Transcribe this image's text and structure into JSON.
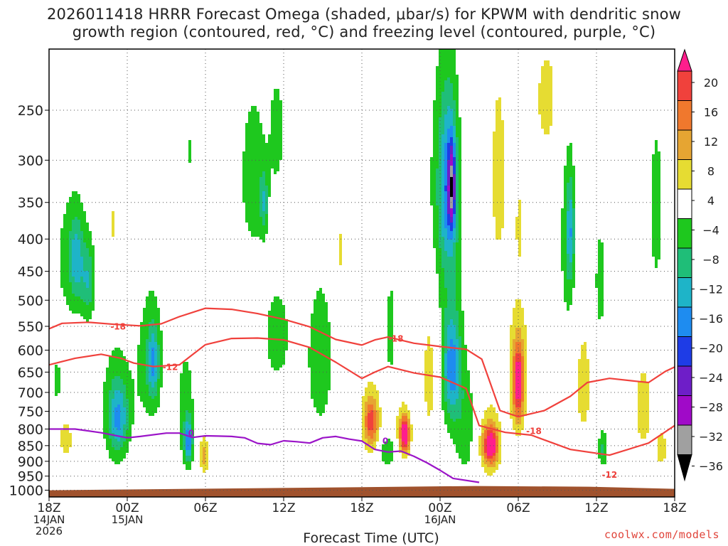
{
  "title_line1": "2026011418 HRRR Forecast Omega (shaded, μbar/s) for KPWM with dendritic snow",
  "title_line2": "growth region (contoured, red, °C) and freezing level (contoured, purple, °C)",
  "xlabel": "Forecast Time (UTC)",
  "credit": "coolwx.com/models",
  "chart_data": {
    "type": "time-height cross section",
    "title": "2026011418 HRRR Forecast Omega (shaded, μbar/s) for KPWM with dendritic snow growth region (contoured, red, °C) and freezing level (contoured, purple, °C)",
    "xlabel": "Forecast Time (UTC)",
    "ylabel": "Pressure (hPa)",
    "x_range_hours": [
      0,
      48
    ],
    "y_range_hpa": [
      200,
      1025
    ],
    "x_ticks": [
      {
        "hour": 0,
        "lines": [
          "18Z",
          "14JAN",
          "2026"
        ]
      },
      {
        "hour": 6,
        "lines": [
          "00Z",
          "15JAN"
        ]
      },
      {
        "hour": 12,
        "lines": [
          "06Z"
        ]
      },
      {
        "hour": 18,
        "lines": [
          "12Z"
        ]
      },
      {
        "hour": 24,
        "lines": [
          "18Z"
        ]
      },
      {
        "hour": 30,
        "lines": [
          "00Z",
          "16JAN"
        ]
      },
      {
        "hour": 36,
        "lines": [
          "06Z"
        ]
      },
      {
        "hour": 42,
        "lines": [
          "12Z"
        ]
      },
      {
        "hour": 48,
        "lines": [
          "18Z"
        ]
      }
    ],
    "y_ticks": [
      250,
      300,
      350,
      400,
      450,
      500,
      550,
      600,
      650,
      700,
      750,
      800,
      850,
      900,
      950,
      1000
    ],
    "colorbar": {
      "ticks": [
        "20",
        "16",
        "12",
        "8",
        "4",
        "−4",
        "−8",
        "−12",
        "−16",
        "−20",
        "−24",
        "−28",
        "−32",
        "−36"
      ],
      "bins": [
        {
          "range": [
            20,
            99
          ],
          "color": "#ff1e8c"
        },
        {
          "range": [
            16,
            20
          ],
          "color": "#f0413c"
        },
        {
          "range": [
            12,
            16
          ],
          "color": "#f0782d"
        },
        {
          "range": [
            8,
            12
          ],
          "color": "#e6a532"
        },
        {
          "range": [
            4,
            8
          ],
          "color": "#e6dc32"
        },
        {
          "range": [
            -4,
            4
          ],
          "color": "#ffffff"
        },
        {
          "range": [
            -8,
            -4
          ],
          "color": "#1ec81e"
        },
        {
          "range": [
            -12,
            -8
          ],
          "color": "#1fbe78"
        },
        {
          "range": [
            -16,
            -12
          ],
          "color": "#1eb4c8"
        },
        {
          "range": [
            -20,
            -16
          ],
          "color": "#1e8cf0"
        },
        {
          "range": [
            -24,
            -20
          ],
          "color": "#1e3ce6"
        },
        {
          "range": [
            -28,
            -24
          ],
          "color": "#6e1ec8"
        },
        {
          "range": [
            -32,
            -28
          ],
          "color": "#a00ac8"
        },
        {
          "range": [
            -36,
            -32
          ],
          "color": "#a0a0a0"
        },
        {
          "range": [
            -99,
            -36
          ],
          "color": "#000000"
        }
      ]
    },
    "omega_features": [
      {
        "h": 1.8,
        "p": 430,
        "dh": 1.6,
        "dp": 120,
        "v": -6
      },
      {
        "h": 2.1,
        "p": 430,
        "dh": 0.5,
        "dp": 60,
        "v": -10
      },
      {
        "h": 3.0,
        "p": 470,
        "dh": 0.5,
        "dp": 60,
        "v": -9
      },
      {
        "h": 0.6,
        "p": 670,
        "dh": 0.4,
        "dp": 60,
        "v": -6
      },
      {
        "h": 1.3,
        "p": 830,
        "dh": 0.6,
        "dp": 70,
        "v": 6
      },
      {
        "h": 5.2,
        "p": 740,
        "dh": 1.3,
        "dp": 180,
        "v": -7
      },
      {
        "h": 5.3,
        "p": 770,
        "dh": 0.7,
        "dp": 90,
        "v": -11
      },
      {
        "h": 7.8,
        "p": 620,
        "dh": 1.1,
        "dp": 170,
        "v": -7
      },
      {
        "h": 8.0,
        "p": 630,
        "dh": 0.4,
        "dp": 80,
        "v": -11
      },
      {
        "h": 5.0,
        "p": 380,
        "dh": 0.3,
        "dp": 60,
        "v": 5
      },
      {
        "h": 10.5,
        "p": 750,
        "dh": 0.7,
        "dp": 170,
        "v": -7
      },
      {
        "h": 10.7,
        "p": 840,
        "dh": 0.3,
        "dp": 60,
        "v": -16
      },
      {
        "h": 11.9,
        "p": 880,
        "dh": 0.35,
        "dp": 60,
        "v": 10
      },
      {
        "h": 10.9,
        "p": 290,
        "dh": 0.25,
        "dp": 50,
        "v": -5
      },
      {
        "h": 15.7,
        "p": 320,
        "dh": 1.1,
        "dp": 100,
        "v": -7
      },
      {
        "h": 16.5,
        "p": 350,
        "dh": 0.3,
        "dp": 40,
        "v": -9
      },
      {
        "h": 17.5,
        "p": 270,
        "dh": 0.6,
        "dp": 60,
        "v": -6
      },
      {
        "h": 17.5,
        "p": 570,
        "dh": 1.2,
        "dp": 120,
        "v": -6
      },
      {
        "h": 20.8,
        "p": 620,
        "dh": 1.3,
        "dp": 220,
        "v": -6
      },
      {
        "h": 22.4,
        "p": 420,
        "dh": 0.4,
        "dp": 90,
        "v": 5
      },
      {
        "h": 24.7,
        "p": 770,
        "dh": 0.8,
        "dp": 120,
        "v": 7
      },
      {
        "h": 24.7,
        "p": 780,
        "dh": 0.5,
        "dp": 60,
        "v": 12
      },
      {
        "h": 26.2,
        "p": 560,
        "dh": 0.3,
        "dp": 110,
        "v": -7
      },
      {
        "h": 26.0,
        "p": 870,
        "dh": 0.7,
        "dp": 50,
        "v": -8
      },
      {
        "h": 27.2,
        "p": 800,
        "dh": 0.6,
        "dp": 80,
        "v": 8
      },
      {
        "h": 27.3,
        "p": 820,
        "dh": 0.35,
        "dp": 50,
        "v": 20
      },
      {
        "h": 29.2,
        "p": 660,
        "dh": 0.6,
        "dp": 170,
        "v": 6
      },
      {
        "h": 30.4,
        "p": 330,
        "dh": 1.2,
        "dp": 150,
        "v": -9
      },
      {
        "h": 30.7,
        "p": 330,
        "dh": 0.6,
        "dp": 90,
        "v": -12
      },
      {
        "h": 30.9,
        "p": 330,
        "dh": 0.25,
        "dp": 50,
        "v": -18
      },
      {
        "h": 30.9,
        "p": 620,
        "dh": 1.0,
        "dp": 190,
        "v": -7
      },
      {
        "h": 30.9,
        "p": 640,
        "dh": 0.6,
        "dp": 110,
        "v": -12
      },
      {
        "h": 32.0,
        "p": 800,
        "dh": 0.9,
        "dp": 170,
        "v": -6
      },
      {
        "h": 33.8,
        "p": 840,
        "dh": 0.9,
        "dp": 110,
        "v": 10
      },
      {
        "h": 33.9,
        "p": 850,
        "dh": 0.5,
        "dp": 50,
        "v": 18
      },
      {
        "h": 36.0,
        "p": 640,
        "dh": 0.8,
        "dp": 160,
        "v": 8
      },
      {
        "h": 36.0,
        "p": 680,
        "dh": 0.4,
        "dp": 90,
        "v": 18
      },
      {
        "h": 34.5,
        "p": 320,
        "dh": 0.7,
        "dp": 130,
        "v": 6
      },
      {
        "h": 36.1,
        "p": 380,
        "dh": 0.3,
        "dp": 50,
        "v": 6
      },
      {
        "h": 38.2,
        "p": 240,
        "dh": 1.3,
        "dp": 70,
        "v": 5
      },
      {
        "h": 39.8,
        "p": 400,
        "dh": 0.7,
        "dp": 180,
        "v": -6
      },
      {
        "h": 40.0,
        "p": 390,
        "dh": 0.3,
        "dp": 70,
        "v": -11
      },
      {
        "h": 41.0,
        "p": 680,
        "dh": 0.7,
        "dp": 160,
        "v": 6
      },
      {
        "h": 42.3,
        "p": 470,
        "dh": 0.5,
        "dp": 110,
        "v": -6
      },
      {
        "h": 42.5,
        "p": 860,
        "dh": 0.4,
        "dp": 60,
        "v": -9
      },
      {
        "h": 45.6,
        "p": 740,
        "dh": 0.7,
        "dp": 120,
        "v": 7
      },
      {
        "h": 46.6,
        "p": 360,
        "dh": 0.6,
        "dp": 130,
        "v": -6
      },
      {
        "h": 47.0,
        "p": 860,
        "dh": 0.5,
        "dp": 70,
        "v": 6
      }
    ],
    "contours": [
      {
        "label": "-18",
        "color": "#f0413c",
        "kind": "dendritic",
        "points": [
          [
            0,
            555
          ],
          [
            1,
            544
          ],
          [
            3,
            542
          ],
          [
            5,
            546
          ],
          [
            7,
            549
          ],
          [
            8.6,
            545
          ],
          [
            10,
            531
          ],
          [
            12,
            515
          ],
          [
            14,
            517
          ],
          [
            16,
            525
          ],
          [
            18,
            536
          ],
          [
            20,
            551
          ],
          [
            22,
            577
          ],
          [
            24,
            589
          ],
          [
            25,
            578
          ],
          [
            26,
            572
          ],
          [
            28,
            585
          ],
          [
            30,
            592
          ],
          [
            32,
            598
          ],
          [
            33.2,
            620
          ],
          [
            34.6,
            748
          ],
          [
            36,
            765
          ],
          [
            38,
            748
          ],
          [
            40,
            710
          ],
          [
            41.3,
            675
          ],
          [
            43,
            665
          ],
          [
            45,
            672
          ],
          [
            46,
            675
          ],
          [
            47.3,
            648
          ],
          [
            48,
            638
          ]
        ],
        "label_positions": [
          [
            5.3,
            549
          ],
          [
            26.6,
            574
          ],
          [
            37.2,
            804
          ]
        ]
      },
      {
        "label": "-12",
        "color": "#f0413c",
        "kind": "dendritic",
        "points": [
          [
            0,
            633
          ],
          [
            2,
            618
          ],
          [
            4,
            609
          ],
          [
            5.5,
            618
          ],
          [
            6.5,
            629
          ],
          [
            8,
            637
          ],
          [
            10,
            633
          ],
          [
            11,
            610
          ],
          [
            12,
            588
          ],
          [
            14,
            575
          ],
          [
            16,
            574
          ],
          [
            18,
            578
          ],
          [
            20,
            594
          ],
          [
            22,
            627
          ],
          [
            24,
            665
          ],
          [
            25,
            650
          ],
          [
            26,
            637
          ],
          [
            28,
            652
          ],
          [
            30,
            662
          ],
          [
            32,
            690
          ],
          [
            33,
            790
          ],
          [
            35,
            810
          ],
          [
            37,
            818
          ],
          [
            40,
            862
          ],
          [
            43,
            880
          ],
          [
            46,
            842
          ],
          [
            48,
            790
          ]
        ],
        "label_positions": [
          [
            9.3,
            637
          ],
          [
            43,
            943
          ]
        ]
      },
      {
        "label": "0",
        "color": "#9b14c8",
        "kind": "freezing",
        "points": [
          [
            0,
            800
          ],
          [
            2,
            800
          ],
          [
            4,
            811
          ],
          [
            6,
            826
          ],
          [
            7,
            822
          ],
          [
            9,
            812
          ],
          [
            10,
            812
          ],
          [
            11,
            825
          ],
          [
            12,
            820
          ],
          [
            13,
            821
          ],
          [
            14,
            822
          ],
          [
            15,
            826
          ],
          [
            16,
            843
          ],
          [
            17,
            847
          ],
          [
            18,
            835
          ],
          [
            19,
            838
          ],
          [
            20,
            842
          ],
          [
            21,
            826
          ],
          [
            22,
            822
          ],
          [
            23,
            830
          ],
          [
            24,
            836
          ],
          [
            25,
            862
          ],
          [
            26,
            870
          ],
          [
            27,
            867
          ],
          [
            28,
            884
          ],
          [
            29,
            905
          ],
          [
            30,
            930
          ],
          [
            31,
            958
          ],
          [
            33,
            972
          ]
        ],
        "label_positions": [
          [
            10.9,
            811
          ],
          [
            25.8,
            834
          ]
        ]
      }
    ],
    "terrain": {
      "color": "#a0522d",
      "top_hpa": 990
    }
  }
}
